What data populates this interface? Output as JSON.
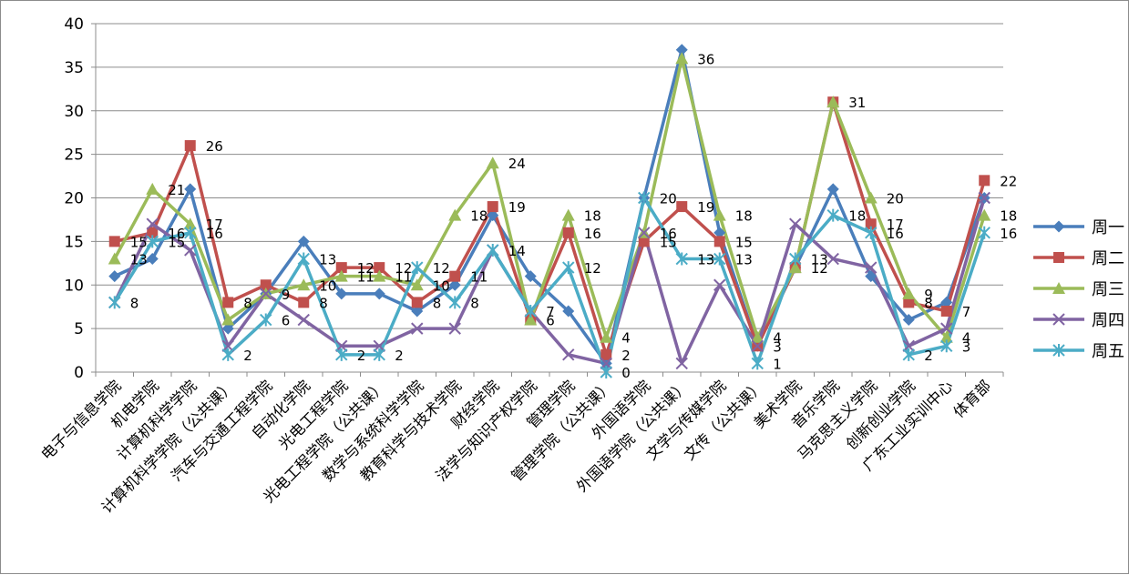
{
  "chart_data": {
    "type": "line",
    "title": "",
    "xlabel": "",
    "ylabel": "",
    "ylim": [
      0,
      40
    ],
    "yticks": [
      0,
      5,
      10,
      15,
      20,
      25,
      30,
      35,
      40
    ],
    "grid": true,
    "legend_position": "right",
    "categories": [
      "电子与信息学院",
      "机电学院",
      "计算机科学学院",
      "计算机科学学院（公共课）",
      "汽车与交通工程学院",
      "自动化学院",
      "光电工程学院",
      "光电工程学院（公共课）",
      "数学与系统科学学院",
      "教育科学与技术学院",
      "财经学院",
      "法学与知识产权学院",
      "管理学院",
      "管理学院（公共课）",
      "外国语学院",
      "外国语学院（公共课）",
      "文学与传媒学院",
      "文传（公共课）",
      "美术学院",
      "音乐学院",
      "马克思主义学院",
      "创新创业学院",
      "广东工业实训中心",
      "体育部"
    ],
    "series": [
      {
        "name": "周一",
        "color": "#4a7ebb",
        "marker": "diamond",
        "values": [
          11,
          13,
          21,
          5,
          9,
          15,
          9,
          9,
          7,
          10,
          18,
          11,
          7,
          1,
          20,
          37,
          16,
          3,
          12,
          21,
          11,
          6,
          8,
          20
        ]
      },
      {
        "name": "周二",
        "color": "#c0504d",
        "marker": "square",
        "values": [
          15,
          16,
          26,
          8,
          10,
          8,
          12,
          12,
          8,
          11,
          19,
          6,
          16,
          2,
          15,
          19,
          15,
          3,
          12,
          31,
          17,
          8,
          7,
          22
        ]
      },
      {
        "name": "周三",
        "color": "#9bbb59",
        "marker": "triangle",
        "values": [
          13,
          21,
          17,
          6,
          9,
          10,
          11,
          11,
          10,
          18,
          24,
          6,
          18,
          4,
          16,
          36,
          18,
          4,
          12,
          31,
          20,
          9,
          4,
          18
        ]
      },
      {
        "name": "周四",
        "color": "#8064a2",
        "marker": "x",
        "values": [
          8,
          17,
          14,
          3,
          9,
          6,
          3,
          3,
          5,
          5,
          14,
          7,
          2,
          1,
          16,
          1,
          10,
          3,
          17,
          13,
          12,
          3,
          5,
          20
        ]
      },
      {
        "name": "周五",
        "color": "#4bacc6",
        "marker": "star",
        "values": [
          8,
          15,
          16,
          2,
          6,
          13,
          2,
          2,
          12,
          8,
          14,
          7,
          12,
          0,
          20,
          13,
          13,
          1,
          13,
          18,
          16,
          2,
          3,
          16
        ]
      }
    ],
    "data_labels": [
      {
        "cat": 0,
        "y": 13,
        "text": "13"
      },
      {
        "cat": 0,
        "y": 15,
        "text": "15"
      },
      {
        "cat": 0,
        "y": 8,
        "text": "8"
      },
      {
        "cat": 1,
        "y": 21,
        "text": "21"
      },
      {
        "cat": 1,
        "y": 16,
        "text": "16"
      },
      {
        "cat": 1,
        "y": 15,
        "text": "15"
      },
      {
        "cat": 2,
        "y": 26,
        "text": "26"
      },
      {
        "cat": 2,
        "y": 17,
        "text": "17"
      },
      {
        "cat": 2,
        "y": 16,
        "text": "16"
      },
      {
        "cat": 3,
        "y": 8,
        "text": "8"
      },
      {
        "cat": 3,
        "y": 2,
        "text": "2"
      },
      {
        "cat": 4,
        "y": 9,
        "text": "9"
      },
      {
        "cat": 4,
        "y": 6,
        "text": "6"
      },
      {
        "cat": 5,
        "y": 13,
        "text": "13"
      },
      {
        "cat": 5,
        "y": 10,
        "text": "10"
      },
      {
        "cat": 5,
        "y": 8,
        "text": "8"
      },
      {
        "cat": 6,
        "y": 12,
        "text": "12"
      },
      {
        "cat": 6,
        "y": 11,
        "text": "11"
      },
      {
        "cat": 6,
        "y": 2,
        "text": "2"
      },
      {
        "cat": 7,
        "y": 12,
        "text": "12"
      },
      {
        "cat": 7,
        "y": 11,
        "text": "11"
      },
      {
        "cat": 7,
        "y": 2,
        "text": "2"
      },
      {
        "cat": 8,
        "y": 12,
        "text": "12"
      },
      {
        "cat": 8,
        "y": 10,
        "text": "10"
      },
      {
        "cat": 8,
        "y": 8,
        "text": "8"
      },
      {
        "cat": 9,
        "y": 18,
        "text": "18"
      },
      {
        "cat": 9,
        "y": 11,
        "text": "11"
      },
      {
        "cat": 9,
        "y": 8,
        "text": "8"
      },
      {
        "cat": 10,
        "y": 24,
        "text": "24"
      },
      {
        "cat": 10,
        "y": 19,
        "text": "19"
      },
      {
        "cat": 10,
        "y": 14,
        "text": "14"
      },
      {
        "cat": 11,
        "y": 7,
        "text": "7"
      },
      {
        "cat": 11,
        "y": 6,
        "text": "6"
      },
      {
        "cat": 12,
        "y": 18,
        "text": "18"
      },
      {
        "cat": 12,
        "y": 16,
        "text": "16"
      },
      {
        "cat": 12,
        "y": 12,
        "text": "12"
      },
      {
        "cat": 13,
        "y": 4,
        "text": "4"
      },
      {
        "cat": 13,
        "y": 2,
        "text": "2"
      },
      {
        "cat": 13,
        "y": 0,
        "text": "0"
      },
      {
        "cat": 14,
        "y": 20,
        "text": "20"
      },
      {
        "cat": 14,
        "y": 16,
        "text": "16"
      },
      {
        "cat": 14,
        "y": 15,
        "text": "15"
      },
      {
        "cat": 15,
        "y": 36,
        "text": "36"
      },
      {
        "cat": 15,
        "y": 19,
        "text": "19"
      },
      {
        "cat": 15,
        "y": 13,
        "text": "13"
      },
      {
        "cat": 16,
        "y": 18,
        "text": "18"
      },
      {
        "cat": 16,
        "y": 15,
        "text": "15"
      },
      {
        "cat": 16,
        "y": 13,
        "text": "13"
      },
      {
        "cat": 17,
        "y": 4,
        "text": "4"
      },
      {
        "cat": 17,
        "y": 3,
        "text": "3"
      },
      {
        "cat": 17,
        "y": 1,
        "text": "1"
      },
      {
        "cat": 18,
        "y": 13,
        "text": "13"
      },
      {
        "cat": 18,
        "y": 12,
        "text": "12"
      },
      {
        "cat": 19,
        "y": 31,
        "text": "31"
      },
      {
        "cat": 19,
        "y": 18,
        "text": "18"
      },
      {
        "cat": 20,
        "y": 20,
        "text": "20"
      },
      {
        "cat": 20,
        "y": 17,
        "text": "17"
      },
      {
        "cat": 20,
        "y": 16,
        "text": "16"
      },
      {
        "cat": 21,
        "y": 9,
        "text": "9"
      },
      {
        "cat": 21,
        "y": 8,
        "text": "8"
      },
      {
        "cat": 21,
        "y": 2,
        "text": "2"
      },
      {
        "cat": 22,
        "y": 7,
        "text": "7"
      },
      {
        "cat": 22,
        "y": 4,
        "text": "4"
      },
      {
        "cat": 22,
        "y": 3,
        "text": "3"
      },
      {
        "cat": 23,
        "y": 22,
        "text": "22"
      },
      {
        "cat": 23,
        "y": 18,
        "text": "18"
      },
      {
        "cat": 23,
        "y": 16,
        "text": "16"
      }
    ]
  }
}
